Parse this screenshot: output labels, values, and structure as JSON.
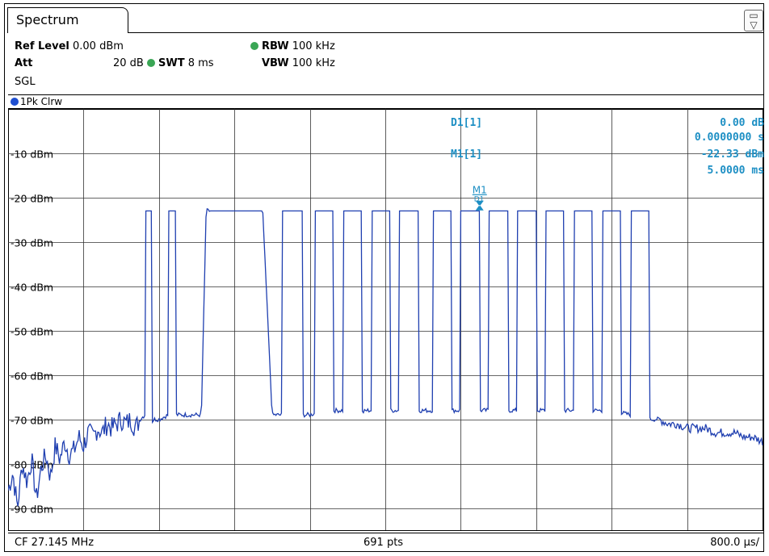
{
  "tab": {
    "title": "Spectrum"
  },
  "settings": {
    "ref_level_label": "Ref Level",
    "ref_level_value": "0.00 dBm",
    "att_label": "Att",
    "att_value": "20 dB",
    "swt_label": "SWT",
    "swt_value": "8 ms",
    "rbw_label": "RBW",
    "rbw_value": "100 kHz",
    "vbw_label": "VBW",
    "vbw_value": "100 kHz",
    "mode": "SGL"
  },
  "trace": {
    "label": "1Pk Clrw"
  },
  "markers": {
    "d1_label": "D1[1]",
    "d1_level": "0.00 dB",
    "d1_time": "0.0000000 s",
    "m1_label": "M1[1]",
    "m1_level": "-22.33 dBm",
    "m1_time": "5.0000 ms",
    "m1_plot_label": "M1",
    "d1_plot_label": "D1"
  },
  "bottom": {
    "cf": "CF 27.145 MHz",
    "pts": "691 pts",
    "span_per_div": "800.0 µs/"
  },
  "colors": {
    "trace": "#1f3fb0",
    "marker": "#1d8fc4",
    "status_dot": "#3aa655"
  },
  "chart_data": {
    "type": "line",
    "title": "",
    "xlabel": "",
    "ylabel": "",
    "xlim": [
      0,
      8
    ],
    "ylim": [
      -95,
      0
    ],
    "grid": true,
    "y_ticks": [
      -10,
      -20,
      -30,
      -40,
      -50,
      -60,
      -70,
      -80,
      -90
    ],
    "y_tick_labels": [
      "-10 dBm",
      "-20 dBm",
      "-30 dBm",
      "-40 dBm",
      "-50 dBm",
      "-60 dBm",
      "-70 dBm",
      "-80 dBm",
      "-90 dBm"
    ],
    "series": [
      {
        "x_ms": [
          0.0,
          0.05,
          0.1,
          0.15,
          0.2,
          0.25,
          0.3,
          0.35,
          0.4,
          0.45,
          0.5,
          0.55,
          0.6,
          0.65,
          0.7,
          0.75,
          0.8,
          0.85,
          0.9,
          0.95,
          1.0,
          1.05,
          1.1,
          1.15,
          1.2,
          1.25,
          1.3,
          1.35,
          1.4,
          1.45,
          1.5,
          1.55,
          1.6,
          1.7,
          1.8,
          1.9,
          2.0,
          2.05,
          2.1,
          2.15,
          2.4,
          2.7,
          2.8,
          3.0,
          3.2,
          3.35,
          3.4,
          3.55,
          3.6,
          3.7,
          3.8,
          3.85,
          4.0,
          4.05,
          4.1,
          4.2,
          4.3,
          4.5,
          4.7,
          5.0,
          5.2,
          5.4,
          5.6,
          5.8,
          6.0,
          6.2,
          6.4,
          6.6,
          6.7,
          6.75,
          6.8,
          6.9,
          7.0,
          7.1,
          7.2,
          7.3,
          7.4,
          7.5,
          7.6,
          7.7,
          7.8,
          7.9,
          8.0
        ],
        "y_dbm": [
          -86,
          -82,
          -90,
          -80,
          -84,
          -79,
          -88,
          -81,
          -78,
          -83,
          -76,
          -79,
          -75,
          -78,
          -77,
          -74,
          -76,
          -73,
          -74,
          -72,
          -73,
          -71,
          -72,
          -71,
          -70,
          -71,
          -70,
          -72,
          -70,
          -69,
          -71,
          -70,
          -70,
          -69,
          -69,
          -69,
          -69,
          -69,
          -23,
          -23,
          -23,
          -23,
          -69,
          -69,
          -69,
          -68,
          -68,
          -68,
          -69,
          -69,
          -68,
          -68,
          -68,
          -68,
          -68,
          -68,
          -68,
          -68,
          -68,
          -68,
          -68,
          -68,
          -68,
          -68,
          -68,
          -68,
          -68,
          -69,
          -69,
          -69,
          -70,
          -70,
          -71,
          -71,
          -72,
          -72,
          -72,
          -73,
          -73,
          -73,
          -74,
          -74,
          -75
        ],
        "burst_intervals_ms": [
          [
            1.45,
            1.52
          ],
          [
            1.7,
            1.78
          ],
          [
            2.15,
            2.7
          ],
          [
            2.9,
            3.12
          ],
          [
            3.25,
            3.45
          ],
          [
            3.55,
            3.75
          ],
          [
            3.85,
            4.05
          ],
          [
            4.15,
            4.35
          ],
          [
            4.5,
            4.7
          ],
          [
            4.8,
            5.0
          ],
          [
            5.1,
            5.3
          ],
          [
            5.4,
            5.6
          ],
          [
            5.7,
            5.9
          ],
          [
            6.0,
            6.2
          ],
          [
            6.3,
            6.5
          ],
          [
            6.6,
            6.8
          ]
        ],
        "burst_level_dbm": -23,
        "floor_between_bursts_dbm": -68
      }
    ],
    "marker_m1": {
      "x_ms": 5.0,
      "y_dbm": -22.33
    }
  }
}
